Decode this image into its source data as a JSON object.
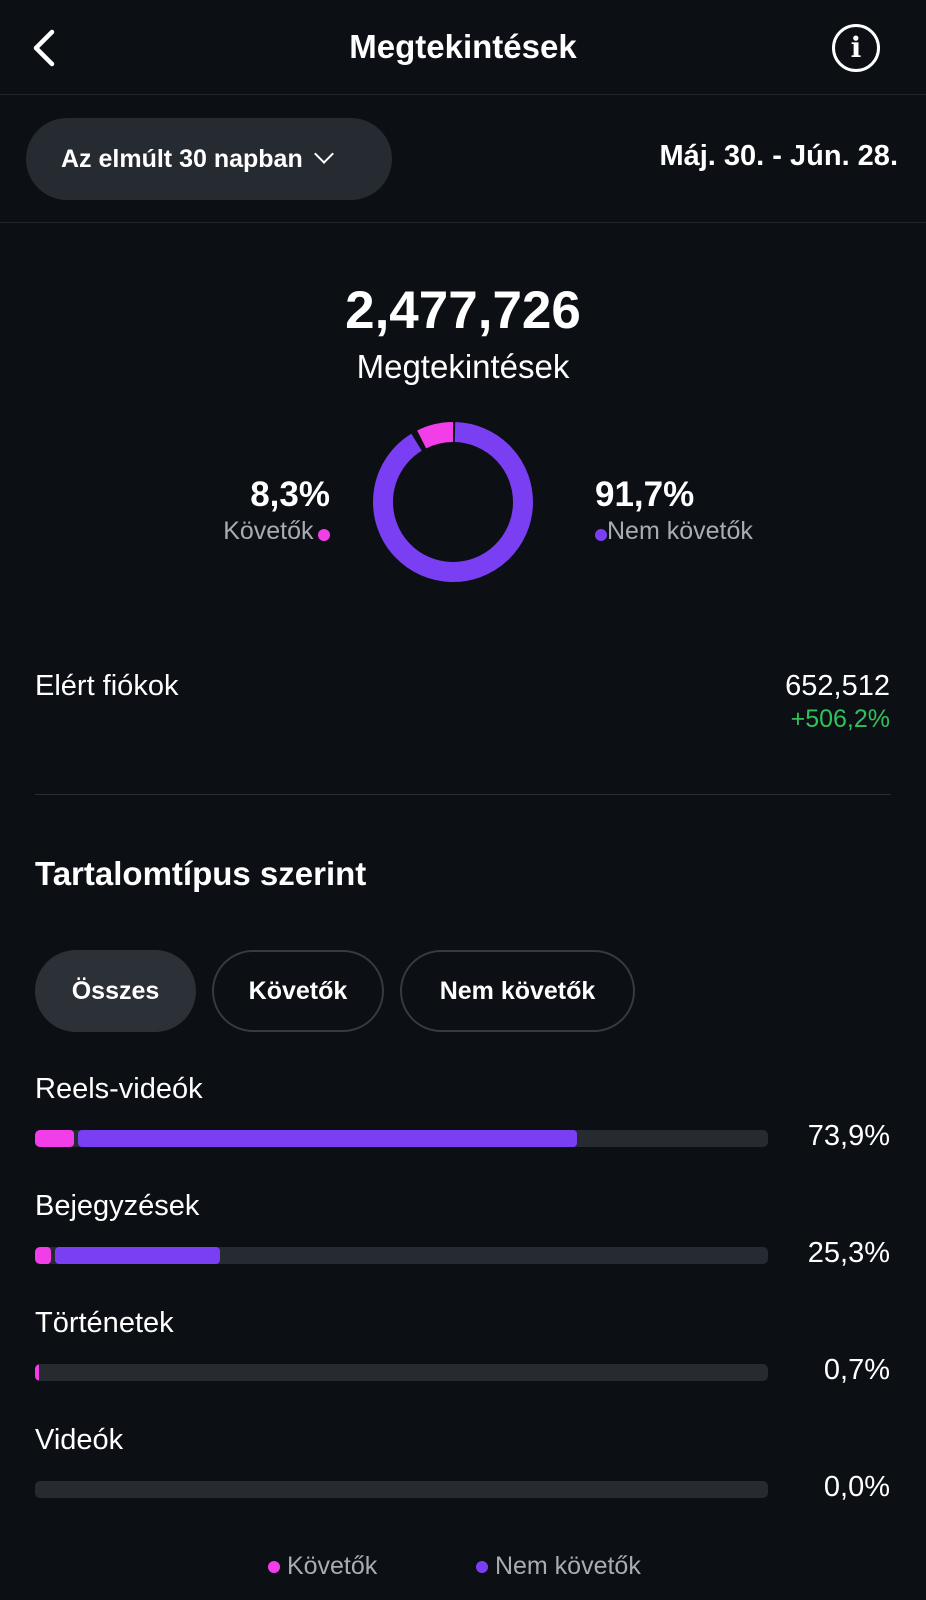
{
  "header": {
    "title": "Megtekintések",
    "back_icon": "chevron-left-icon",
    "info_icon": "info-icon",
    "info_glyph": "i"
  },
  "filter": {
    "range_label": "Az elmúlt 30 napban",
    "dates": "Máj. 30. - Jún. 28."
  },
  "summary": {
    "total": "2,477,726",
    "label": "Megtekintések",
    "followers": {
      "pct": "8,3%",
      "label": "Követők",
      "value": 8.3
    },
    "non_followers": {
      "pct": "91,7%",
      "label": "Nem követők",
      "value": 91.7
    }
  },
  "reached": {
    "label": "Elért fiókok",
    "value": "652,512",
    "change": "+506,2%"
  },
  "content_type": {
    "title": "Tartalomtípus szerint",
    "tabs": [
      "Összes",
      "Követők",
      "Nem követők"
    ],
    "items": [
      {
        "label": "Reels-videók",
        "pct": "73,9%",
        "followers": 5.3,
        "non_followers": 68.6
      },
      {
        "label": "Bejegyzések",
        "pct": "25,3%",
        "followers": 2.2,
        "non_followers": 23.1
      },
      {
        "label": "Történetek",
        "pct": "0,7%",
        "followers": 0.6,
        "non_followers": 0.1
      },
      {
        "label": "Videók",
        "pct": "0,0%",
        "followers": 0,
        "non_followers": 0
      }
    ]
  },
  "legend": {
    "followers": "Követők",
    "non_followers": "Nem követők"
  },
  "colors": {
    "followers": "#f23ee8",
    "non_followers": "#7a3ff2",
    "positive": "#2fc25b"
  }
}
